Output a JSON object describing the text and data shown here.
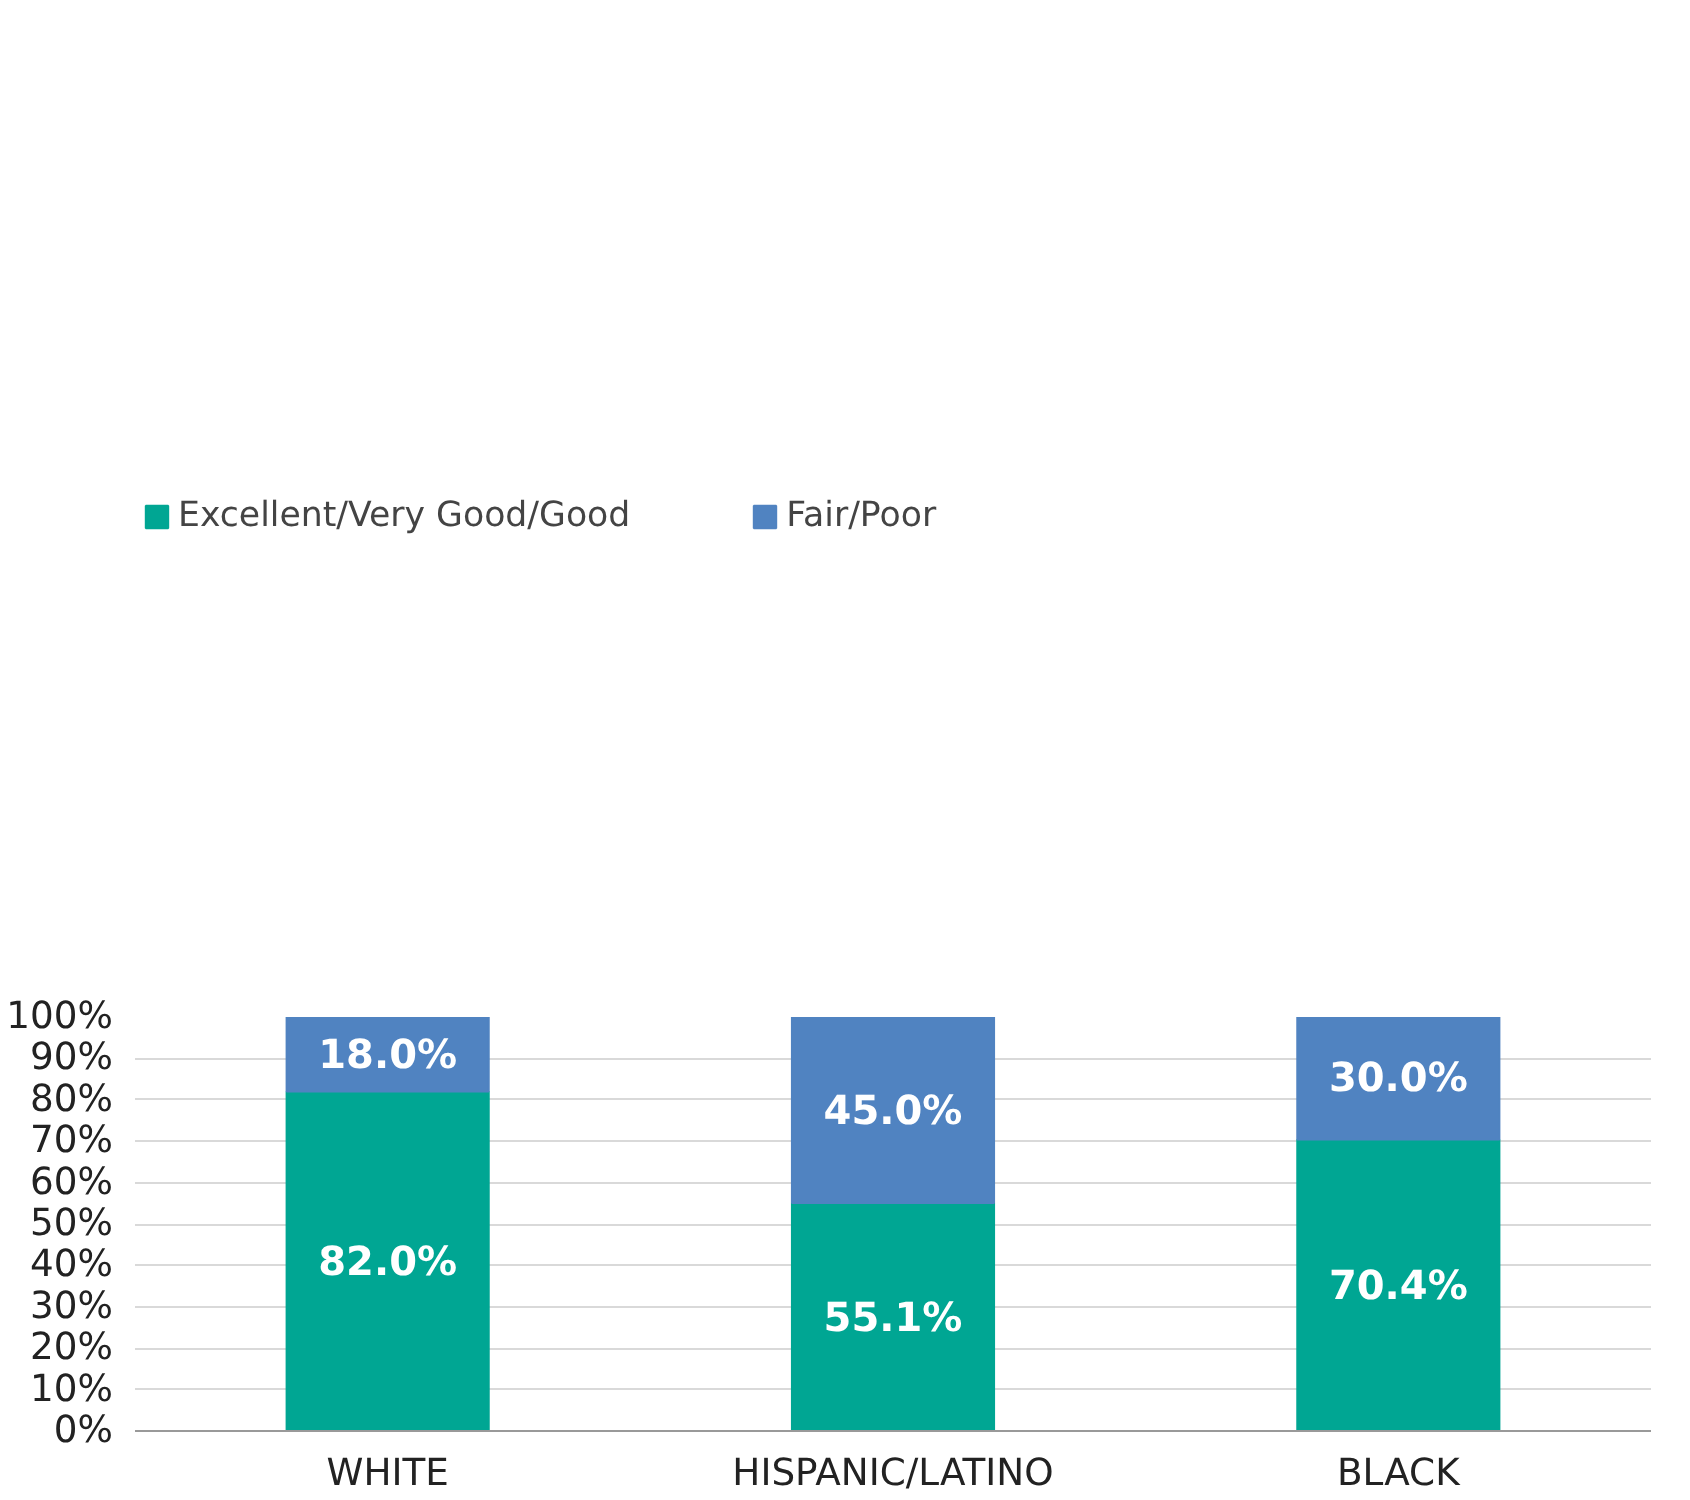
{
  "chart_data": {
    "type": "bar",
    "stacked": true,
    "categories": [
      "WHITE",
      "HISPANIC/LATINO",
      "BLACK"
    ],
    "series": [
      {
        "name": "Excellent/Very Good/Good",
        "color": "#00a693",
        "values": [
          82.0,
          55.1,
          70.4
        ],
        "value_labels": [
          "82.0%",
          "55.1%",
          "70.4%"
        ]
      },
      {
        "name": "Fair/Poor",
        "color": "#5083c1",
        "values": [
          18.0,
          45.0,
          30.0
        ],
        "value_labels": [
          "18.0%",
          "45.0%",
          "30.0%"
        ]
      }
    ],
    "ylim": [
      0,
      100
    ],
    "yticks": [
      {
        "value": 0,
        "label": "0%"
      },
      {
        "value": 10,
        "label": "10%"
      },
      {
        "value": 20,
        "label": "20%"
      },
      {
        "value": 30,
        "label": "30%"
      },
      {
        "value": 40,
        "label": "40%"
      },
      {
        "value": 50,
        "label": "50%"
      },
      {
        "value": 60,
        "label": "60%"
      },
      {
        "value": 70,
        "label": "70%"
      },
      {
        "value": 80,
        "label": "80%"
      },
      {
        "value": 90,
        "label": "90%"
      },
      {
        "value": 100,
        "label": "100%"
      }
    ],
    "grid": "y",
    "legend": "top left"
  }
}
